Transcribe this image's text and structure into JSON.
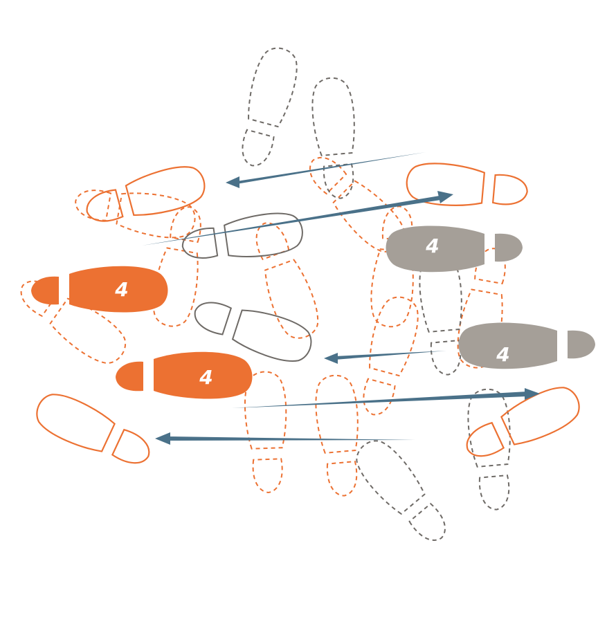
{
  "diagram": {
    "colors": {
      "orange": "#ec7132",
      "gray": "#6e6a66",
      "gray_fill": "#a59f98",
      "arrow": "#4a7189",
      "background": "#ffffff"
    },
    "step_labels": {
      "left_foot_front": "4",
      "left_foot_back": "4",
      "right_foot_front": "4",
      "right_foot_back": "4"
    }
  }
}
